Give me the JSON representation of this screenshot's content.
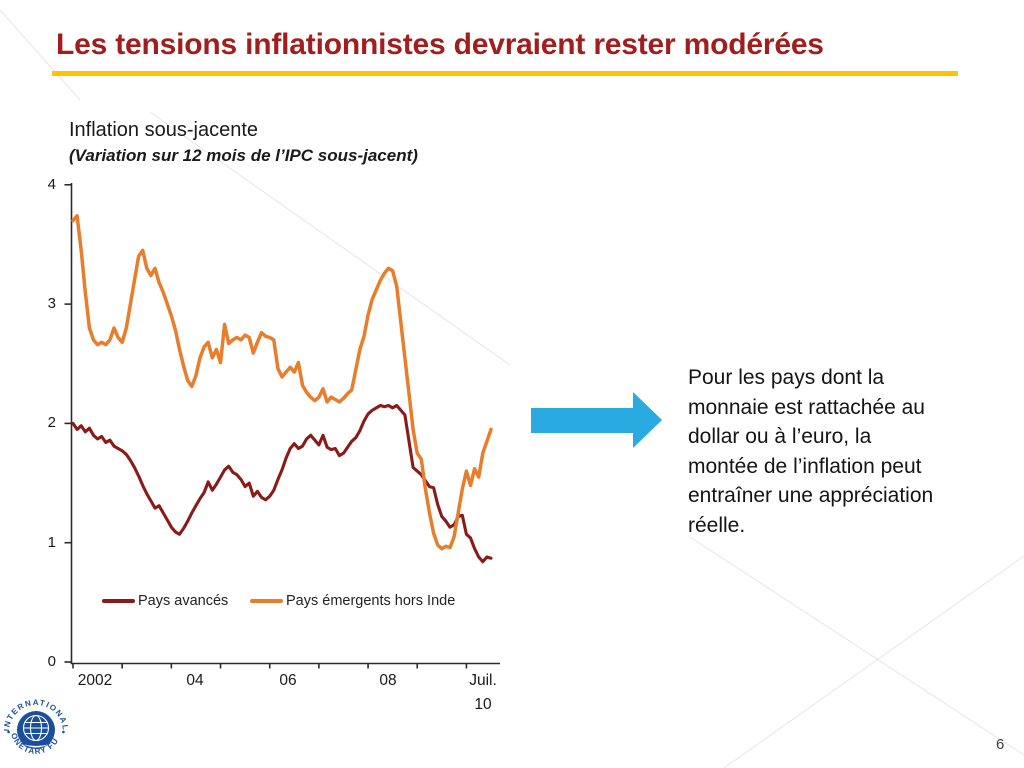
{
  "slide": {
    "title": "Les tensions inflationnistes devraient rester modérées",
    "title_color": "#A21E1E",
    "accent_bar_color": "#FFC400",
    "page_number": "6"
  },
  "chart": {
    "title": "Inflation sous-jacente",
    "subtitle": "(Variation sur 12 mois de l’IPC sous-jacent)"
  },
  "callout": {
    "text": "Pour les pays dont la\nmonnaie est rattachée au\ndollar ou à l’euro, la\nmontée de l’inflation peut\nentraîner une appréciation\nréelle.",
    "arrow_color": "#29ABE2"
  },
  "logo": {
    "text_top": "INTERNATIONAL",
    "text_bottom": "MONETARY FUND",
    "color": "#1B4F9E"
  },
  "chart_data": {
    "type": "line",
    "title": "Inflation sous-jacente",
    "subtitle": "(Variation sur 12 mois de l’IPC sous-jacent)",
    "x_start": "2002-01",
    "x_end": "2010-07",
    "x_tick_labels": [
      "2002",
      "04",
      "06",
      "08",
      "Juil.\n10"
    ],
    "y_ticks": [
      "0",
      "1",
      "2",
      "3",
      "4"
    ],
    "ylim": [
      0,
      4
    ],
    "grid": false,
    "legend_position": "bottom-inside",
    "series": [
      {
        "name": "Pays avancés",
        "color": "#8B1A1A",
        "values": [
          2.0,
          1.95,
          1.98,
          1.93,
          1.96,
          1.9,
          1.87,
          1.89,
          1.84,
          1.86,
          1.81,
          1.79,
          1.77,
          1.74,
          1.69,
          1.63,
          1.56,
          1.48,
          1.41,
          1.35,
          1.29,
          1.31,
          1.25,
          1.19,
          1.13,
          1.09,
          1.07,
          1.12,
          1.18,
          1.25,
          1.31,
          1.37,
          1.42,
          1.51,
          1.44,
          1.49,
          1.55,
          1.61,
          1.64,
          1.59,
          1.57,
          1.53,
          1.47,
          1.5,
          1.39,
          1.43,
          1.38,
          1.36,
          1.39,
          1.44,
          1.53,
          1.61,
          1.71,
          1.79,
          1.83,
          1.79,
          1.81,
          1.87,
          1.9,
          1.86,
          1.82,
          1.9,
          1.8,
          1.78,
          1.79,
          1.73,
          1.75,
          1.8,
          1.85,
          1.88,
          1.94,
          2.02,
          2.08,
          2.11,
          2.13,
          2.15,
          2.14,
          2.15,
          2.13,
          2.15,
          2.11,
          2.07,
          1.85,
          1.63,
          1.6,
          1.57,
          1.52,
          1.47,
          1.46,
          1.32,
          1.22,
          1.18,
          1.13,
          1.15,
          1.22,
          1.23,
          1.07,
          1.04,
          0.95,
          0.88,
          0.84,
          0.88,
          0.87
        ]
      },
      {
        "name": "Pays émergents hors Inde",
        "color": "#E87D2C",
        "values": [
          3.7,
          3.74,
          3.45,
          3.1,
          2.8,
          2.7,
          2.66,
          2.68,
          2.66,
          2.7,
          2.8,
          2.72,
          2.68,
          2.8,
          3.0,
          3.2,
          3.4,
          3.45,
          3.3,
          3.24,
          3.3,
          3.18,
          3.1,
          3.0,
          2.9,
          2.78,
          2.62,
          2.48,
          2.36,
          2.31,
          2.4,
          2.55,
          2.64,
          2.68,
          2.55,
          2.62,
          2.51,
          2.83,
          2.67,
          2.7,
          2.72,
          2.7,
          2.74,
          2.72,
          2.59,
          2.68,
          2.76,
          2.73,
          2.72,
          2.7,
          2.46,
          2.39,
          2.43,
          2.47,
          2.43,
          2.51,
          2.32,
          2.26,
          2.22,
          2.19,
          2.22,
          2.29,
          2.18,
          2.22,
          2.2,
          2.18,
          2.21,
          2.25,
          2.28,
          2.45,
          2.62,
          2.73,
          2.91,
          3.04,
          3.12,
          3.2,
          3.26,
          3.3,
          3.28,
          3.15,
          2.85,
          2.55,
          2.25,
          1.95,
          1.75,
          1.7,
          1.45,
          1.25,
          1.08,
          0.98,
          0.95,
          0.97,
          0.96,
          1.05,
          1.25,
          1.45,
          1.6,
          1.48,
          1.62,
          1.55,
          1.75,
          1.85,
          1.95
        ]
      }
    ]
  }
}
